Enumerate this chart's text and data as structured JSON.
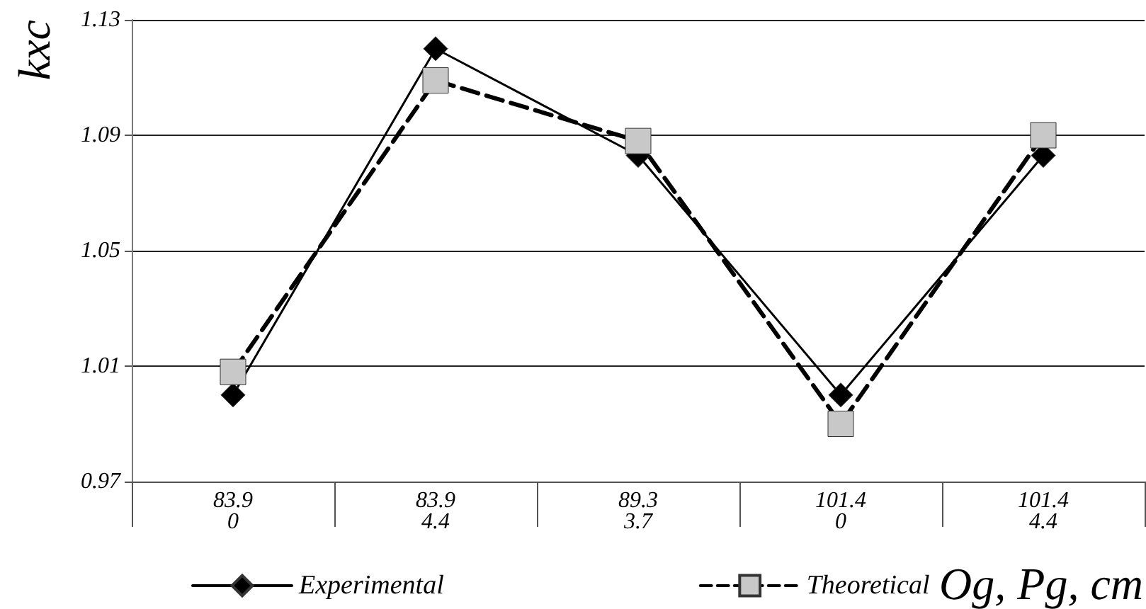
{
  "chart_data": {
    "type": "line",
    "ylabel": "kxc",
    "xlabel": "Og, Pg, cm",
    "categories": [
      "83.9\n0",
      "83.9\n4.4",
      "89.3\n3.7",
      "101.4\n0",
      "101.4\n4.4"
    ],
    "series": [
      {
        "name": "Experimental",
        "color": "#000000",
        "marker": "diamond",
        "line_style": "solid",
        "values": [
          1.0,
          1.12,
          1.083,
          1.0,
          1.083
        ]
      },
      {
        "name": "Theoretical",
        "color": "#c8c8c8",
        "marker": "square",
        "line_style": "dashed",
        "values": [
          1.008,
          1.109,
          1.088,
          0.99,
          1.09
        ]
      }
    ],
    "ylim": [
      0.97,
      1.13
    ],
    "yticks": [
      0.97,
      1.01,
      1.05,
      1.09,
      1.13
    ],
    "grid": "y",
    "legend": "bottom"
  }
}
